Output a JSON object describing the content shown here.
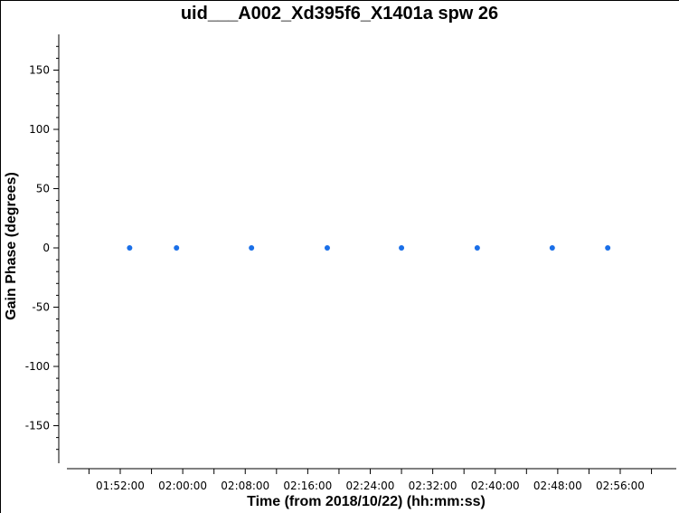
{
  "chart_data": {
    "type": "scatter",
    "title": "uid___A002_Xd395f6_X1401a spw 26",
    "xlabel": "Time (from 2018/10/22) (hh:mm:ss)",
    "ylabel": "Gain Phase (degrees)",
    "x_tick_labels": [
      "01:52:00",
      "02:00:00",
      "02:08:00",
      "02:16:00",
      "02:24:00",
      "02:32:00",
      "02:40:00",
      "02:48:00",
      "02:56:00"
    ],
    "x_ticks_minutes": [
      112,
      120,
      128,
      136,
      144,
      152,
      160,
      168,
      176
    ],
    "x_range_minutes": [
      104,
      181
    ],
    "y_ticks": [
      150,
      100,
      50,
      0,
      -50,
      -100,
      -150
    ],
    "ylim": [
      -180,
      180
    ],
    "grid": false,
    "series": [
      {
        "color": "#1a6fe8",
        "x_minutes": [
          113.2,
          119.2,
          128.8,
          138.5,
          148.0,
          157.7,
          167.3,
          174.4
        ],
        "y": [
          0,
          0,
          0,
          0,
          0,
          0,
          0,
          0
        ]
      }
    ]
  }
}
